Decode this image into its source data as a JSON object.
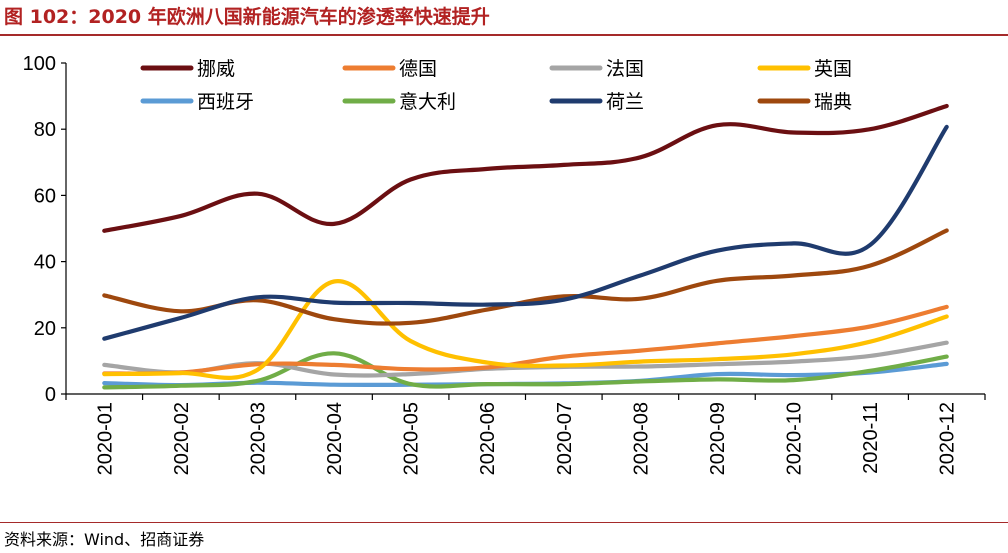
{
  "header": {
    "title": "图 102：2020 年欧洲八国新能源汽车的渗透率快速提升"
  },
  "footer": {
    "source": "资料来源：Wind、招商证券"
  },
  "chart_data": {
    "type": "line",
    "title": "图 102：2020 年欧洲八国新能源汽车的渗透率快速提升",
    "xlabel": "",
    "ylabel": "",
    "ylim": [
      0,
      100
    ],
    "yticks": [
      0,
      20,
      40,
      60,
      80,
      100
    ],
    "grid": false,
    "legend_position": "top",
    "categories": [
      "2020-01",
      "2020-02",
      "2020-03",
      "2020-04",
      "2020-05",
      "2020-06",
      "2020-07",
      "2020-08",
      "2020-09",
      "2020-10",
      "2020-11",
      "2020-12"
    ],
    "series": [
      {
        "name": "挪威",
        "color": "#6b0f12",
        "values": [
          49.3,
          53.8,
          60.5,
          51.4,
          64.8,
          68.0,
          69.2,
          71.5,
          81.2,
          79.0,
          80.0,
          87.0
        ]
      },
      {
        "name": "德国",
        "color": "#ed7d31",
        "values": [
          6.2,
          6.5,
          9.0,
          8.8,
          7.5,
          8.0,
          11.3,
          13.1,
          15.3,
          17.5,
          20.4,
          26.3
        ]
      },
      {
        "name": "法国",
        "color": "#a5a5a5",
        "values": [
          8.8,
          6.5,
          9.3,
          5.9,
          6.0,
          7.6,
          8.2,
          8.3,
          9.0,
          9.8,
          11.5,
          15.5
        ]
      },
      {
        "name": "英国",
        "color": "#ffc000",
        "values": [
          6.0,
          6.3,
          7.3,
          34.0,
          16.0,
          9.5,
          8.6,
          9.8,
          10.5,
          12.0,
          15.8,
          23.4
        ]
      },
      {
        "name": "西班牙",
        "color": "#5b9bd5",
        "values": [
          3.3,
          2.7,
          3.4,
          2.8,
          2.8,
          3.0,
          3.2,
          4.0,
          6.0,
          5.7,
          6.5,
          9.1
        ]
      },
      {
        "name": "意大利",
        "color": "#70ad47",
        "values": [
          2.0,
          2.5,
          4.0,
          12.3,
          3.0,
          3.0,
          3.0,
          3.8,
          4.4,
          4.2,
          7.0,
          11.3
        ]
      },
      {
        "name": "荷兰",
        "color": "#1f3b6e",
        "values": [
          16.7,
          23.0,
          29.2,
          27.6,
          27.5,
          27.0,
          28.5,
          35.8,
          43.3,
          45.5,
          45.0,
          80.7
        ]
      },
      {
        "name": "瑞典",
        "color": "#9e480e",
        "values": [
          29.8,
          25.0,
          28.3,
          22.6,
          21.5,
          25.5,
          29.5,
          28.8,
          34.2,
          35.8,
          38.8,
          49.4
        ]
      }
    ]
  }
}
